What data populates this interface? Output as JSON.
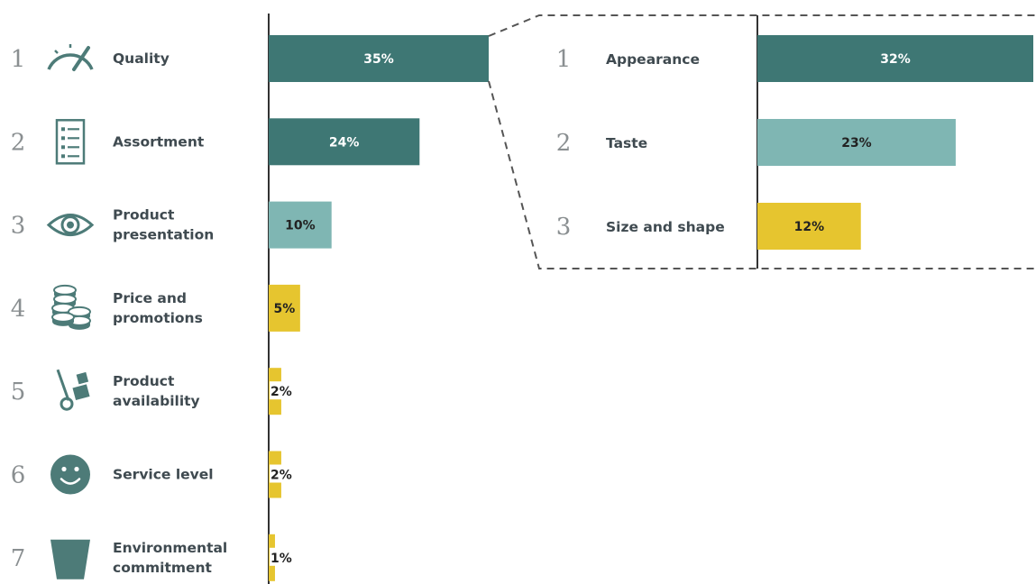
{
  "colors": {
    "dark_teal": "#3e7774",
    "light_teal": "#7fb6b3",
    "yellow": "#e6c52f",
    "icon": "#4d7b78",
    "axis": "#333333"
  },
  "chart_data": [
    {
      "type": "bar",
      "orientation": "horizontal",
      "categories": [
        {
          "rank": "1",
          "lines": [
            "Quality"
          ],
          "icon": "speedometer-icon"
        },
        {
          "rank": "2",
          "lines": [
            "Assortment"
          ],
          "icon": "checklist-icon"
        },
        {
          "rank": "3",
          "lines": [
            "Product",
            "presentation"
          ],
          "icon": "eye-icon"
        },
        {
          "rank": "4",
          "lines": [
            "Price and",
            "promotions"
          ],
          "icon": "coins-icon"
        },
        {
          "rank": "5",
          "lines": [
            "Product",
            "availability"
          ],
          "icon": "hand-truck-icon"
        },
        {
          "rank": "6",
          "lines": [
            "Service level"
          ],
          "icon": "smiley-icon"
        },
        {
          "rank": "7",
          "lines": [
            "Environmental",
            "commitment"
          ],
          "icon": "cup-icon"
        }
      ],
      "values": [
        35,
        24,
        10,
        5,
        2,
        2,
        1
      ],
      "value_labels": [
        "35%",
        "24%",
        "10%",
        "5%",
        "2%",
        "2%",
        "1%"
      ],
      "bar_colors": [
        "dark_teal",
        "dark_teal",
        "light_teal",
        "yellow",
        "yellow",
        "yellow",
        "yellow"
      ],
      "label_colors": [
        "#ffffff",
        "#ffffff",
        "#222222",
        "#222222",
        "#222222",
        "#222222",
        "#222222"
      ]
    },
    {
      "type": "bar",
      "orientation": "horizontal",
      "breakdown_of": "Quality",
      "categories": [
        {
          "rank": "1",
          "lines": [
            "Appearance"
          ]
        },
        {
          "rank": "2",
          "lines": [
            "Taste"
          ]
        },
        {
          "rank": "3",
          "lines": [
            "Size and shape"
          ]
        }
      ],
      "values": [
        32,
        23,
        12
      ],
      "value_labels": [
        "32%",
        "23%",
        "12%"
      ],
      "bar_colors": [
        "dark_teal",
        "light_teal",
        "yellow"
      ],
      "label_colors": [
        "#ffffff",
        "#222222",
        "#222222"
      ]
    }
  ]
}
